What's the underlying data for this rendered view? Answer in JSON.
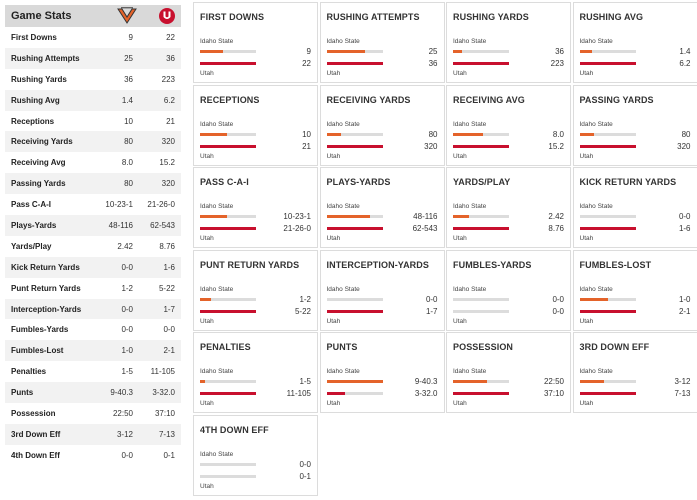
{
  "left_table": {
    "title": "Game Stats",
    "rows": [
      {
        "label": "First Downs",
        "away": "9",
        "home": "22"
      },
      {
        "label": "Rushing Attempts",
        "away": "25",
        "home": "36"
      },
      {
        "label": "Rushing Yards",
        "away": "36",
        "home": "223"
      },
      {
        "label": "Rushing Avg",
        "away": "1.4",
        "home": "6.2"
      },
      {
        "label": "Receptions",
        "away": "10",
        "home": "21"
      },
      {
        "label": "Receiving Yards",
        "away": "80",
        "home": "320"
      },
      {
        "label": "Receiving Avg",
        "away": "8.0",
        "home": "15.2"
      },
      {
        "label": "Passing Yards",
        "away": "80",
        "home": "320"
      },
      {
        "label": "Pass C-A-I",
        "away": "10-23-1",
        "home": "21-26-0"
      },
      {
        "label": "Plays-Yards",
        "away": "48-116",
        "home": "62-543"
      },
      {
        "label": "Yards/Play",
        "away": "2.42",
        "home": "8.76"
      },
      {
        "label": "Kick Return Yards",
        "away": "0-0",
        "home": "1-6"
      },
      {
        "label": "Punt Return Yards",
        "away": "1-2",
        "home": "5-22"
      },
      {
        "label": "Interception-Yards",
        "away": "0-0",
        "home": "1-7"
      },
      {
        "label": "Fumbles-Yards",
        "away": "0-0",
        "home": "0-0"
      },
      {
        "label": "Fumbles-Lost",
        "away": "1-0",
        "home": "2-1"
      },
      {
        "label": "Penalties",
        "away": "1-5",
        "home": "11-105"
      },
      {
        "label": "Punts",
        "away": "9-40.3",
        "home": "3-32.0"
      },
      {
        "label": "Possession",
        "away": "22:50",
        "home": "37:10"
      },
      {
        "label": "3rd Down Eff",
        "away": "3-12",
        "home": "7-13"
      },
      {
        "label": "4th Down Eff",
        "away": "0-0",
        "home": "0-1"
      }
    ]
  },
  "teams": {
    "away": "Idaho State",
    "home": "Utah"
  },
  "colors": {
    "away_bar": "#e4632a",
    "home_bar": "#c8102e",
    "track": "#dcdcdc"
  },
  "cards": [
    {
      "title": "FIRST DOWNS",
      "away": "9",
      "home": "22",
      "away_frac": 0.41,
      "home_frac": 1.0
    },
    {
      "title": "RUSHING ATTEMPTS",
      "away": "25",
      "home": "36",
      "away_frac": 0.69,
      "home_frac": 1.0
    },
    {
      "title": "RUSHING YARDS",
      "away": "36",
      "home": "223",
      "away_frac": 0.16,
      "home_frac": 1.0
    },
    {
      "title": "RUSHING AVG",
      "away": "1.4",
      "home": "6.2",
      "away_frac": 0.23,
      "home_frac": 1.0
    },
    {
      "title": "RECEPTIONS",
      "away": "10",
      "home": "21",
      "away_frac": 0.48,
      "home_frac": 1.0
    },
    {
      "title": "RECEIVING YARDS",
      "away": "80",
      "home": "320",
      "away_frac": 0.25,
      "home_frac": 1.0
    },
    {
      "title": "RECEIVING AVG",
      "away": "8.0",
      "home": "15.2",
      "away_frac": 0.53,
      "home_frac": 1.0
    },
    {
      "title": "PASSING YARDS",
      "away": "80",
      "home": "320",
      "away_frac": 0.25,
      "home_frac": 1.0
    },
    {
      "title": "PASS C-A-I",
      "away": "10-23-1",
      "home": "21-26-0",
      "away_frac": 0.48,
      "home_frac": 1.0
    },
    {
      "title": "PLAYS-YARDS",
      "away": "48-116",
      "home": "62-543",
      "away_frac": 0.77,
      "home_frac": 1.0
    },
    {
      "title": "YARDS/PLAY",
      "away": "2.42",
      "home": "8.76",
      "away_frac": 0.28,
      "home_frac": 1.0
    },
    {
      "title": "KICK RETURN YARDS",
      "away": "0-0",
      "home": "1-6",
      "away_frac": 0.0,
      "home_frac": 1.0
    },
    {
      "title": "PUNT RETURN YARDS",
      "away": "1-2",
      "home": "5-22",
      "away_frac": 0.2,
      "home_frac": 1.0
    },
    {
      "title": "INTERCEPTION-YARDS",
      "away": "0-0",
      "home": "1-7",
      "away_frac": 0.0,
      "home_frac": 1.0
    },
    {
      "title": "FUMBLES-YARDS",
      "away": "0-0",
      "home": "0-0",
      "away_frac": 0.0,
      "home_frac": 0.0
    },
    {
      "title": "FUMBLES-LOST",
      "away": "1-0",
      "home": "2-1",
      "away_frac": 0.5,
      "home_frac": 1.0
    },
    {
      "title": "PENALTIES",
      "away": "1-5",
      "home": "11-105",
      "away_frac": 0.09,
      "home_frac": 1.0
    },
    {
      "title": "PUNTS",
      "away": "9-40.3",
      "home": "3-32.0",
      "away_frac": 1.0,
      "home_frac": 0.33
    },
    {
      "title": "POSSESSION",
      "away": "22:50",
      "home": "37:10",
      "away_frac": 0.61,
      "home_frac": 1.0
    },
    {
      "title": "3RD DOWN EFF",
      "away": "3-12",
      "home": "7-13",
      "away_frac": 0.43,
      "home_frac": 1.0
    },
    {
      "title": "4TH DOWN EFF",
      "away": "0-0",
      "home": "0-1",
      "away_frac": 0.0,
      "home_frac": 0.0
    }
  ]
}
